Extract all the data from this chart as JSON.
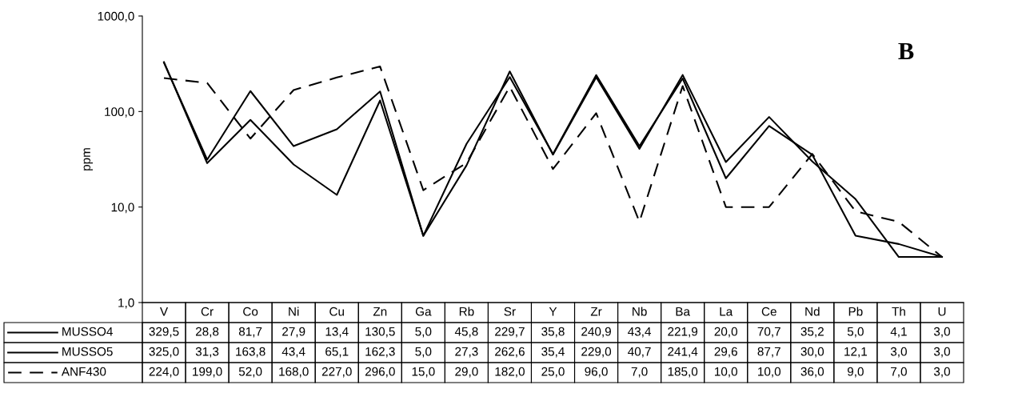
{
  "chart_data": {
    "type": "line",
    "ylabel": "ppm",
    "log": true,
    "grid": false,
    "legend": "bottom",
    "marker": "none",
    "ylim": [
      1,
      1000
    ],
    "yticks": [
      {
        "value": 1,
        "label": "1,0"
      },
      {
        "value": 10,
        "label": "10,0"
      },
      {
        "value": 100,
        "label": "100,0"
      },
      {
        "value": 1000,
        "label": "1000,0"
      }
    ],
    "annotations": [
      "B"
    ],
    "categories": [
      "V",
      "Cr",
      "Co",
      "Ni",
      "Cu",
      "Zn",
      "Ga",
      "Rb",
      "Sr",
      "Y",
      "Zr",
      "Nb",
      "Ba",
      "La",
      "Ce",
      "Nd",
      "Pb",
      "Th",
      "U"
    ],
    "series": [
      {
        "name": "MUSSO4",
        "color": "#000000",
        "line_style": "solid",
        "values": [
          329.5,
          28.8,
          81.7,
          27.9,
          13.4,
          130.5,
          5.0,
          45.8,
          229.7,
          35.8,
          240.9,
          43.4,
          221.9,
          20.0,
          70.7,
          35.2,
          5.0,
          4.1,
          3.0
        ],
        "value_labels": [
          "329,5",
          "28,8",
          "81,7",
          "27,9",
          "13,4",
          "130,5",
          "5,0",
          "45,8",
          "229,7",
          "35,8",
          "240,9",
          "43,4",
          "221,9",
          "20,0",
          "70,7",
          "35,2",
          "5,0",
          "4,1",
          "3,0"
        ]
      },
      {
        "name": "MUSSO5",
        "color": "#000000",
        "line_style": "solid",
        "values": [
          325.0,
          31.3,
          163.8,
          43.4,
          65.1,
          162.3,
          5.0,
          27.3,
          262.6,
          35.4,
          229.0,
          40.7,
          241.4,
          29.6,
          87.7,
          30.0,
          12.1,
          3.0,
          3.0
        ],
        "value_labels": [
          "325,0",
          "31,3",
          "163,8",
          "43,4",
          "65,1",
          "162,3",
          "5,0",
          "27,3",
          "262,6",
          "35,4",
          "229,0",
          "40,7",
          "241,4",
          "29,6",
          "87,7",
          "30,0",
          "12,1",
          "3,0",
          "3,0"
        ]
      },
      {
        "name": "ANF430",
        "color": "#000000",
        "line_style": "dashed",
        "values": [
          224.0,
          199.0,
          52.0,
          168.0,
          227.0,
          296.0,
          15.0,
          29.0,
          182.0,
          25.0,
          96.0,
          7.0,
          185.0,
          10.0,
          10.0,
          36.0,
          9.0,
          7.0,
          3.0
        ],
        "value_labels": [
          "224,0",
          "199,0",
          "52,0",
          "168,0",
          "227,0",
          "296,0",
          "15,0",
          "29,0",
          "182,0",
          "25,0",
          "96,0",
          "7,0",
          "185,0",
          "10,0",
          "10,0",
          "36,0",
          "9,0",
          "7,0",
          "3,0"
        ]
      }
    ]
  }
}
